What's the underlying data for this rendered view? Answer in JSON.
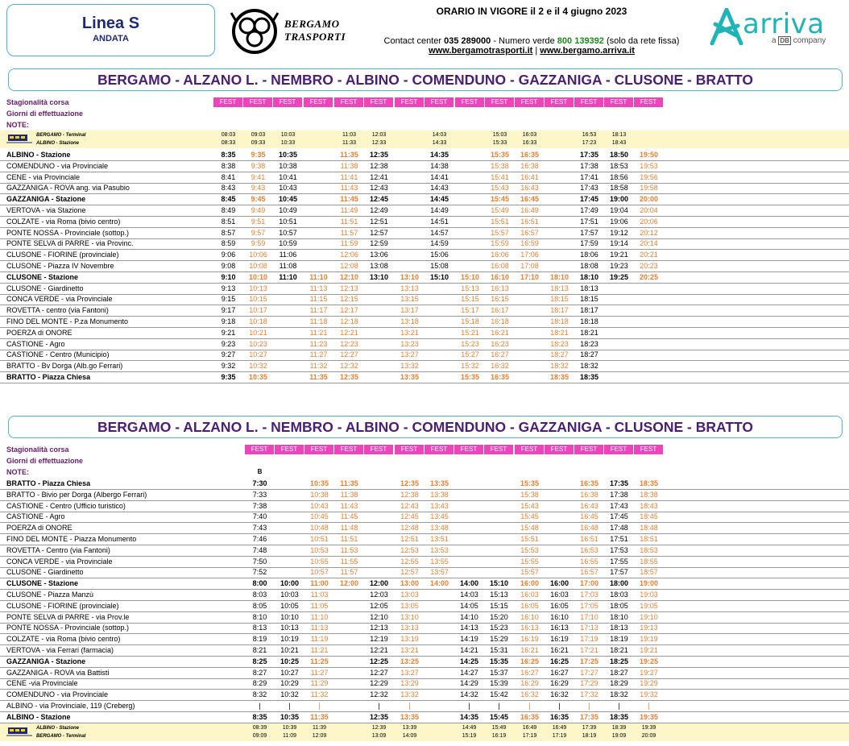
{
  "header": {
    "linea": "Linea S",
    "direction": "ANDATA",
    "brand_line1": "BERGAMO",
    "brand_line2": "TRASPORTI",
    "orario": "ORARIO IN VIGORE il 2 e il 4 giugno 2023",
    "contact_prefix": "Contact center",
    "contact_number": "035 289000",
    "verde_prefix": " - Numero verde ",
    "verde_number": "800 139392",
    "verde_suffix": " (solo da rete fissa)",
    "url1": "www.bergamotrasporti.it",
    "url_sep": " | ",
    "url2": "www.bergamo.arriva.it",
    "arriva": "arriva",
    "arriva_a": "a",
    "arriva_db": "DB",
    "arriva_company": "company"
  },
  "labels": {
    "stagionalita": "Stagionalità corsa",
    "giorni": "Giorni di effettuazione",
    "note": "NOTE:",
    "fest": "FEST"
  },
  "colors": {
    "accent_orange": "#ee7d2b",
    "fest_pink": "#ee44bb",
    "title_purple": "#4a1e78",
    "frame_blue": "#4bb3d6"
  },
  "table1": {
    "title": "BERGAMO - ALZANO L. - NEMBRO - ALBINO - COMENDUNO - GAZZANIGA - CLUSONE - BRATTO",
    "cols": [
      283,
      320,
      357,
      395,
      433,
      470,
      508,
      545,
      583,
      620,
      657,
      694,
      731,
      768,
      805
    ],
    "fest_count": 15,
    "notes": [
      "",
      "",
      "",
      "",
      "",
      "",
      "",
      "",
      "",
      "",
      "",
      "",
      "",
      "",
      ""
    ],
    "pre_rows": [
      {
        "stop": "BERGAMO - Terminal",
        "times": [
          "08:03",
          "09:03",
          "10:03",
          "",
          "11:03",
          "12:03",
          "",
          "14:03",
          "",
          "15:03",
          "16:03",
          "",
          "16:53",
          "18:13",
          ""
        ]
      },
      {
        "stop": "ALBINO - Stazione",
        "times": [
          "08:33",
          "09:33",
          "10:33",
          "",
          "11:33",
          "12:33",
          "",
          "14:33",
          "",
          "15:33",
          "16:33",
          "",
          "17:23",
          "18:43",
          ""
        ]
      }
    ],
    "rows": [
      {
        "stop": "ALBINO - Stazione",
        "bold": true,
        "times": [
          "8:35",
          "9:35",
          "10:35",
          "",
          "11:35",
          "12:35",
          "",
          "14:35",
          "",
          "15:35",
          "16:35",
          "",
          "17:35",
          "18:50",
          "19:50"
        ]
      },
      {
        "stop": "COMENDUNO - via Provinciale",
        "times": [
          "8:38",
          "9:38",
          "10:38",
          "",
          "11:38",
          "12:38",
          "",
          "14:38",
          "",
          "15:38",
          "16:38",
          "",
          "17:38",
          "18:53",
          "19:53"
        ]
      },
      {
        "stop": "CENE - via Provinciale",
        "times": [
          "8:41",
          "9:41",
          "10:41",
          "",
          "11:41",
          "12:41",
          "",
          "14:41",
          "",
          "15:41",
          "16:41",
          "",
          "17:41",
          "18:56",
          "19:56"
        ]
      },
      {
        "stop": "GAZZANIGA - ROVA ang. via Pasubio",
        "times": [
          "8:43",
          "9:43",
          "10:43",
          "",
          "11:43",
          "12:43",
          "",
          "14:43",
          "",
          "15:43",
          "16:43",
          "",
          "17:43",
          "18:58",
          "19:58"
        ]
      },
      {
        "stop": "GAZZANIGA - Stazione",
        "bold": true,
        "times": [
          "8:45",
          "9:45",
          "10:45",
          "",
          "11:45",
          "12:45",
          "",
          "14:45",
          "",
          "15:45",
          "16:45",
          "",
          "17:45",
          "19:00",
          "20:00"
        ]
      },
      {
        "stop": "VERTOVA - via Stazione",
        "times": [
          "8:49",
          "9:49",
          "10:49",
          "",
          "11:49",
          "12:49",
          "",
          "14:49",
          "",
          "15:49",
          "16:49",
          "",
          "17:49",
          "19:04",
          "20:04"
        ]
      },
      {
        "stop": "COLZATE - via Roma (bivio centro)",
        "times": [
          "8:51",
          "9:51",
          "10:51",
          "",
          "11:51",
          "12:51",
          "",
          "14:51",
          "",
          "15:51",
          "16:51",
          "",
          "17:51",
          "19:06",
          "20:06"
        ]
      },
      {
        "stop": "PONTE NOSSA - Provinciale (sottop.)",
        "times": [
          "8:57",
          "9:57",
          "10:57",
          "",
          "11:57",
          "12:57",
          "",
          "14:57",
          "",
          "15:57",
          "16:57",
          "",
          "17:57",
          "19:12",
          "20:12"
        ]
      },
      {
        "stop": "PONTE SELVA di PARRE - via Provinc.",
        "times": [
          "8:59",
          "9:59",
          "10:59",
          "",
          "11:59",
          "12:59",
          "",
          "14:59",
          "",
          "15:59",
          "16:59",
          "",
          "17:59",
          "19:14",
          "20:14"
        ]
      },
      {
        "stop": "CLUSONE - FIORINE (provinciale)",
        "times": [
          "9:06",
          "10:06",
          "11:06",
          "",
          "12:06",
          "13:06",
          "",
          "15:06",
          "",
          "16:06",
          "17:06",
          "",
          "18:06",
          "19:21",
          "20:21"
        ]
      },
      {
        "stop": "CLUSONE - Piazza IV Novembre",
        "times": [
          "9:08",
          "10:08",
          "11:08",
          "",
          "12:08",
          "13:08",
          "",
          "15:08",
          "",
          "16:08",
          "17:08",
          "",
          "18:08",
          "19:23",
          "20:23"
        ]
      },
      {
        "stop": "CLUSONE - Stazione",
        "bold": true,
        "times": [
          "9:10",
          "10:10",
          "11:10",
          "11:10",
          "12:10",
          "13:10",
          "13:10",
          "15:10",
          "15:10",
          "16:10",
          "17:10",
          "18:10",
          "18:10",
          "19:25",
          "20:25"
        ]
      },
      {
        "stop": "CLUSONE - Giardinetto",
        "times": [
          "9:13",
          "10:13",
          "",
          "11:13",
          "12:13",
          "",
          "13:13",
          "",
          "15:13",
          "16:13",
          "",
          "18:13",
          "18:13",
          "",
          ""
        ]
      },
      {
        "stop": "CONCA VERDE - via Provinciale",
        "times": [
          "9:15",
          "10:15",
          "",
          "11:15",
          "12:15",
          "",
          "13:15",
          "",
          "15:15",
          "16:15",
          "",
          "18:15",
          "18:15",
          "",
          ""
        ]
      },
      {
        "stop": "ROVETTA - centro (via Fantoni)",
        "times": [
          "9:17",
          "10:17",
          "",
          "11:17",
          "12:17",
          "",
          "13:17",
          "",
          "15:17",
          "16:17",
          "",
          "18:17",
          "18:17",
          "",
          ""
        ]
      },
      {
        "stop": "FINO DEL MONTE - P.za Monumento",
        "times": [
          "9:18",
          "10:18",
          "",
          "11:18",
          "12:18",
          "",
          "13:18",
          "",
          "15:18",
          "16:18",
          "",
          "18:18",
          "18:18",
          "",
          ""
        ]
      },
      {
        "stop": "POERZA di ONORE",
        "times": [
          "9:21",
          "10:21",
          "",
          "11:21",
          "12:21",
          "",
          "13:21",
          "",
          "15:21",
          "16:21",
          "",
          "18:21",
          "18:21",
          "",
          ""
        ]
      },
      {
        "stop": "CASTIONE - Agro",
        "times": [
          "9:23",
          "10:23",
          "",
          "11:23",
          "12:23",
          "",
          "13:23",
          "",
          "15:23",
          "16:23",
          "",
          "18:23",
          "18:23",
          "",
          ""
        ]
      },
      {
        "stop": "CASTIONE - Centro (Municipio)",
        "times": [
          "9:27",
          "10:27",
          "",
          "11:27",
          "12:27",
          "",
          "13:27",
          "",
          "15:27",
          "16:27",
          "",
          "18:27",
          "18:27",
          "",
          ""
        ]
      },
      {
        "stop": "BRATTO - Bv Dorga (Alb.go Ferrari)",
        "times": [
          "9:32",
          "10:32",
          "",
          "11:32",
          "12:32",
          "",
          "13:32",
          "",
          "15:32",
          "16:32",
          "",
          "18:32",
          "18:32",
          "",
          ""
        ]
      },
      {
        "stop": "BRATTO - Piazza Chiesa",
        "bold": true,
        "times": [
          "9:35",
          "10:35",
          "",
          "11:35",
          "12:35",
          "",
          "13:35",
          "",
          "15:35",
          "16:35",
          "",
          "18:35",
          "18:35",
          "",
          ""
        ]
      }
    ]
  },
  "table2": {
    "title": "BERGAMO - ALZANO L. - NEMBRO - ALBINO - COMENDUNO - GAZZANIGA - CLUSONE - BRATTO",
    "cols": [
      322,
      359,
      396,
      433,
      470,
      508,
      545,
      582,
      619,
      657,
      694,
      731,
      768,
      805
    ],
    "fest_count": 14,
    "notes": [
      "B",
      "",
      "",
      "",
      "",
      "",
      "",
      "",
      "",
      "",
      "",
      "",
      "",
      ""
    ],
    "rows": [
      {
        "stop": "BRATTO - Piazza Chiesa",
        "bold": true,
        "times": [
          "7:30",
          "",
          "10:35",
          "11:35",
          "",
          "12:35",
          "13:35",
          "",
          "",
          "15:35",
          "",
          "16:35",
          "17:35",
          "18:35"
        ]
      },
      {
        "stop": "BRATTO - Bivio per Dorga (Albergo Ferrari)",
        "times": [
          "7:33",
          "",
          "10:38",
          "11:38",
          "",
          "12:38",
          "13:38",
          "",
          "",
          "15:38",
          "",
          "16:38",
          "17:38",
          "18:38"
        ]
      },
      {
        "stop": "CASTIONE - Centro (Ufficio turistico)",
        "times": [
          "7:38",
          "",
          "10:43",
          "11:43",
          "",
          "12:43",
          "13:43",
          "",
          "",
          "15:43",
          "",
          "16:43",
          "17:43",
          "18:43"
        ]
      },
      {
        "stop": "CASTIONE - Agro",
        "times": [
          "7:40",
          "",
          "10:45",
          "11:45",
          "",
          "12:45",
          "13:45",
          "",
          "",
          "15:45",
          "",
          "16:45",
          "17:45",
          "18:45"
        ]
      },
      {
        "stop": "POERZA di ONORE",
        "times": [
          "7:43",
          "",
          "10:48",
          "11:48",
          "",
          "12:48",
          "13:48",
          "",
          "",
          "15:48",
          "",
          "16:48",
          "17:48",
          "18:48"
        ]
      },
      {
        "stop": "FINO DEL MONTE - Piazza Monumento",
        "times": [
          "7:46",
          "",
          "10:51",
          "11:51",
          "",
          "12:51",
          "13:51",
          "",
          "",
          "15:51",
          "",
          "16:51",
          "17:51",
          "18:51"
        ]
      },
      {
        "stop": "ROVETTA - Centro (via Fantoni)",
        "times": [
          "7:48",
          "",
          "10:53",
          "11:53",
          "",
          "12:53",
          "13:53",
          "",
          "",
          "15:53",
          "",
          "16:53",
          "17:53",
          "18:53"
        ]
      },
      {
        "stop": "CONCA VERDE - via Provinciale",
        "times": [
          "7:50",
          "",
          "10:55",
          "11:55",
          "",
          "12:55",
          "13:55",
          "",
          "",
          "15:55",
          "",
          "16:55",
          "17:55",
          "18:55"
        ]
      },
      {
        "stop": "CLUSONE - Giardinetto",
        "times": [
          "7:52",
          "",
          "10:57",
          "11:57",
          "",
          "12:57",
          "13:57",
          "",
          "",
          "15:57",
          "",
          "16:57",
          "17:57",
          "18:57"
        ]
      },
      {
        "stop": "CLUSONE - Stazione",
        "bold": true,
        "times": [
          "8:00",
          "10:00",
          "11:00",
          "12:00",
          "12:00",
          "13:00",
          "14:00",
          "14:00",
          "15:10",
          "16:00",
          "16:00",
          "17:00",
          "18:00",
          "19:00"
        ]
      },
      {
        "stop": "CLUSONE - Piazza Manzù",
        "times": [
          "8:03",
          "10:03",
          "11:03",
          "",
          "12:03",
          "13:03",
          "",
          "14:03",
          "15:13",
          "16:03",
          "16:03",
          "17:03",
          "18:03",
          "19:03"
        ]
      },
      {
        "stop": "CLUSONE - FIORINE (provinciale)",
        "times": [
          "8:05",
          "10:05",
          "11:05",
          "",
          "12:05",
          "13:05",
          "",
          "14:05",
          "15:15",
          "16:05",
          "16:05",
          "17:05",
          "18:05",
          "19:05"
        ]
      },
      {
        "stop": "PONTE SELVA di PARRE - via Prov.le",
        "times": [
          "8:10",
          "10:10",
          "11:10",
          "",
          "12:10",
          "13:10",
          "",
          "14:10",
          "15:20",
          "16:10",
          "16:10",
          "17:10",
          "18:10",
          "19:10"
        ]
      },
      {
        "stop": "PONTE NOSSA - Provinciale (sottop.)",
        "times": [
          "8:13",
          "10:13",
          "11:13",
          "",
          "12:13",
          "13:13",
          "",
          "14:13",
          "15:23",
          "16:13",
          "16:13",
          "17:13",
          "18:13",
          "19:13"
        ]
      },
      {
        "stop": "COLZATE - via Roma (bivio centro)",
        "times": [
          "8:19",
          "10:19",
          "11:19",
          "",
          "12:19",
          "13:19",
          "",
          "14:19",
          "15:29",
          "16:19",
          "16:19",
          "17:19",
          "18:19",
          "19:19"
        ]
      },
      {
        "stop": "VERTOVA - via Ferrari (farmacia)",
        "times": [
          "8:21",
          "10:21",
          "11:21",
          "",
          "12:21",
          "13:21",
          "",
          "14:21",
          "15:31",
          "16:21",
          "16:21",
          "17:21",
          "18:21",
          "19:21"
        ]
      },
      {
        "stop": "GAZZANIGA - Stazione",
        "bold": true,
        "times": [
          "8:25",
          "10:25",
          "11:25",
          "",
          "12:25",
          "13:25",
          "",
          "14:25",
          "15:35",
          "16:25",
          "16:25",
          "17:25",
          "18:25",
          "19:25"
        ]
      },
      {
        "stop": "GAZZANIGA - ROVA via Battisti",
        "times": [
          "8:27",
          "10:27",
          "11:27",
          "",
          "12:27",
          "13:27",
          "",
          "14:27",
          "15:37",
          "16:27",
          "16:27",
          "17:27",
          "18:27",
          "19:27"
        ]
      },
      {
        "stop": "CENE -via Provinciale",
        "times": [
          "8:29",
          "10:29",
          "11:29",
          "",
          "12:29",
          "13:29",
          "",
          "14:29",
          "15:39",
          "16:29",
          "16:29",
          "17:29",
          "18:29",
          "19:29"
        ]
      },
      {
        "stop": "COMENDUNO - via Provinciale",
        "times": [
          "8:32",
          "10:32",
          "11:32",
          "",
          "12:32",
          "13:32",
          "",
          "14:32",
          "15:42",
          "16:32",
          "16:32",
          "17:32",
          "18:32",
          "19:32"
        ]
      },
      {
        "stop": "ALBINO - via Provinciale, 119 (Creberg)",
        "times": [
          "|",
          "|",
          "|",
          "",
          "|",
          "|",
          "",
          "|",
          "|",
          "|",
          "|",
          "|",
          "|",
          "|"
        ]
      },
      {
        "stop": "ALBINO - Stazione",
        "bold": true,
        "times": [
          "8:35",
          "10:35",
          "11:35",
          "",
          "12:35",
          "13:35",
          "",
          "14:35",
          "15:45",
          "16:35",
          "16:35",
          "17:35",
          "18:35",
          "19:35"
        ]
      }
    ],
    "post_rows": [
      {
        "stop": "ALBINO - Stazione",
        "times": [
          "08:39",
          "10:39",
          "11:39",
          "",
          "12:39",
          "13:39",
          "",
          "14:49",
          "15:49",
          "16:49",
          "16:49",
          "17:39",
          "18:39",
          "19:39"
        ]
      },
      {
        "stop": "BERGAMO - Terminal",
        "times": [
          "09:09",
          "11:09",
          "12:09",
          "",
          "13:09",
          "14:09",
          "",
          "15:19",
          "16:19",
          "17:19",
          "17:19",
          "18:19",
          "19:09",
          "20:09"
        ]
      }
    ]
  }
}
